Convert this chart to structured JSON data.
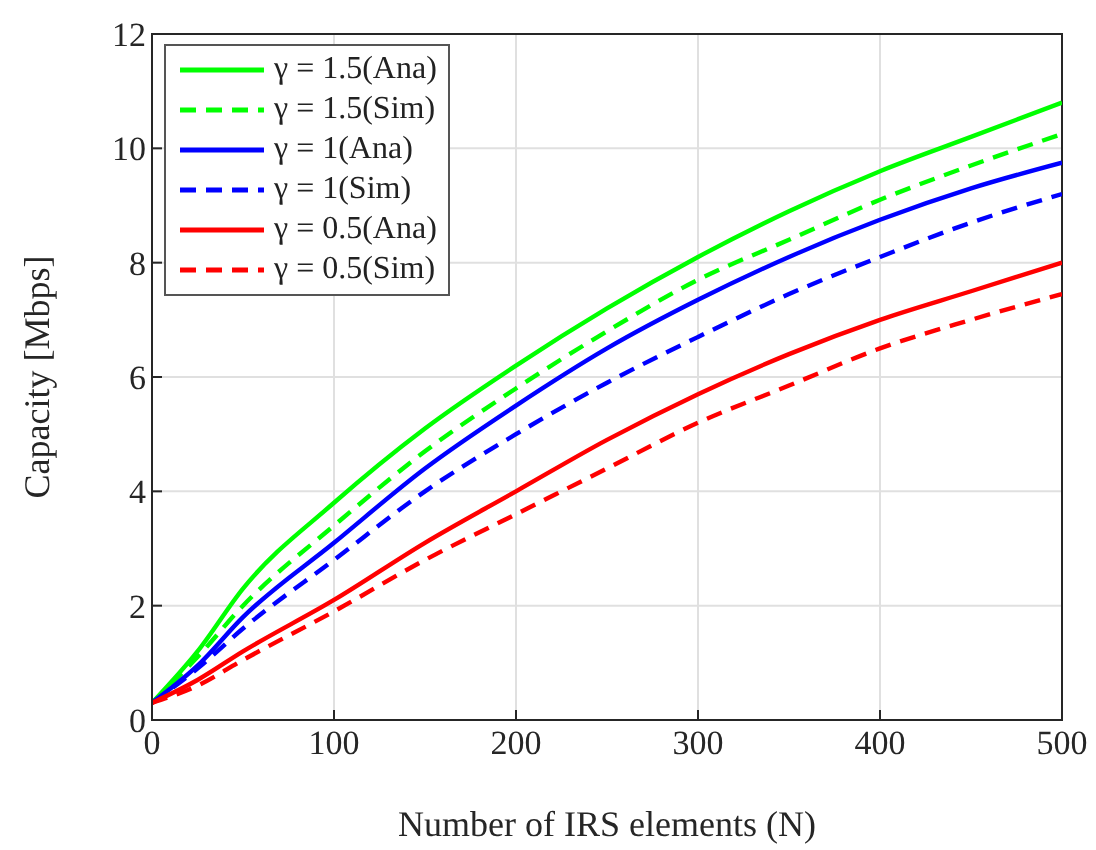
{
  "chart_data": {
    "type": "line",
    "xlabel": "Number of IRS elements (N)",
    "ylabel": "Capacity [Mbps]",
    "x": [
      0,
      25,
      50,
      100,
      150,
      200,
      250,
      300,
      350,
      400,
      450,
      500
    ],
    "series": [
      {
        "name": "γ = 1.5(Ana)",
        "color": "#00ff00",
        "line_style": "solid",
        "values": [
          0.3,
          1.2,
          2.3,
          3.8,
          5.1,
          6.2,
          7.2,
          8.1,
          8.9,
          9.6,
          10.2,
          10.8
        ]
      },
      {
        "name": "γ = 1.5(Sim)",
        "color": "#00ff00",
        "line_style": "dashed",
        "values": [
          0.3,
          1.1,
          2.0,
          3.4,
          4.7,
          5.8,
          6.8,
          7.7,
          8.4,
          9.1,
          9.7,
          10.25
        ]
      },
      {
        "name": "γ = 1(Ana)",
        "color": "#0000ff",
        "line_style": "solid",
        "values": [
          0.3,
          0.95,
          1.8,
          3.1,
          4.4,
          5.5,
          6.5,
          7.35,
          8.1,
          8.75,
          9.3,
          9.75
        ]
      },
      {
        "name": "γ = 1(Sim)",
        "color": "#0000ff",
        "line_style": "dashed",
        "values": [
          0.3,
          0.9,
          1.6,
          2.8,
          4.0,
          5.0,
          5.9,
          6.7,
          7.45,
          8.1,
          8.7,
          9.2
        ]
      },
      {
        "name": "γ = 0.5(Ana)",
        "color": "#ff0000",
        "line_style": "solid",
        "values": [
          0.3,
          0.7,
          1.2,
          2.1,
          3.1,
          4.0,
          4.9,
          5.7,
          6.4,
          7.0,
          7.5,
          8.0
        ]
      },
      {
        "name": "γ = 0.5(Sim)",
        "color": "#ff0000",
        "line_style": "dashed",
        "values": [
          0.3,
          0.6,
          1.05,
          1.9,
          2.8,
          3.6,
          4.4,
          5.2,
          5.85,
          6.5,
          7.0,
          7.45
        ]
      }
    ],
    "xlim": [
      0,
      500
    ],
    "xticks": [
      0,
      100,
      200,
      300,
      400,
      500
    ],
    "ylim": [
      0,
      12
    ],
    "yticks": [
      0,
      2,
      4,
      6,
      8,
      10,
      12
    ],
    "grid": true,
    "legend": "top left"
  }
}
